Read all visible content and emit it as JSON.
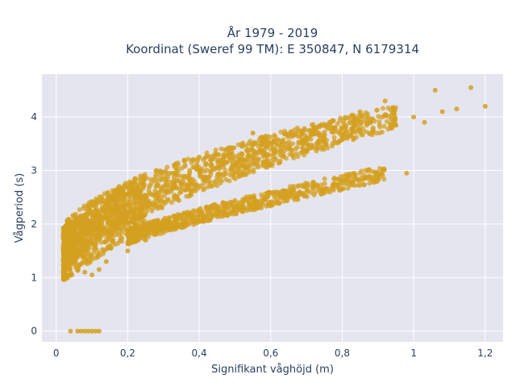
{
  "chart_data": {
    "type": "scatter",
    "title_line1": "År 1979 - 2019",
    "title_line2": "Koordinat (Sweref 99 TM): E 350847, N 6179314",
    "xlabel": "Signifikant våghöjd (m)",
    "ylabel": "Vågperiod (s)",
    "xlim": [
      -0.04,
      1.25
    ],
    "ylim": [
      -0.2,
      4.8
    ],
    "x_ticks": [
      0,
      0.2,
      0.4,
      0.6,
      0.8,
      1,
      1.2
    ],
    "x_tick_labels": [
      "0",
      "0,2",
      "0,4",
      "0,6",
      "0,8",
      "1",
      "1,2"
    ],
    "y_ticks": [
      0,
      1,
      2,
      3,
      4
    ],
    "y_tick_labels": [
      "0",
      "1",
      "2",
      "3",
      "4"
    ],
    "grid": true,
    "marker_color": "#d4a020",
    "plot_bg": "#e5e5f0",
    "series": [
      {
        "points": [
          [
            0.04,
            0
          ],
          [
            0.06,
            0
          ],
          [
            0.07,
            0
          ],
          [
            0.08,
            0
          ],
          [
            0.09,
            0
          ],
          [
            0.1,
            0
          ],
          [
            0.11,
            0
          ],
          [
            0.12,
            0
          ],
          [
            0.02,
            1.3
          ],
          [
            0.03,
            1.45
          ],
          [
            0.05,
            1.5
          ],
          [
            0.06,
            1.2
          ],
          [
            0.08,
            1.1
          ],
          [
            0.1,
            1.05
          ],
          [
            0.12,
            1.15
          ],
          [
            0.14,
            1.3
          ],
          [
            0.15,
            2.3
          ],
          [
            0.18,
            2.6
          ],
          [
            0.2,
            1.5
          ],
          [
            0.22,
            2.85
          ],
          [
            0.25,
            1.7
          ],
          [
            0.28,
            3.0
          ],
          [
            0.3,
            1.9
          ],
          [
            0.33,
            3.1
          ],
          [
            0.35,
            2.0
          ],
          [
            0.4,
            3.25
          ],
          [
            0.42,
            2.15
          ],
          [
            0.45,
            3.3
          ],
          [
            0.5,
            2.3
          ],
          [
            0.52,
            3.45
          ],
          [
            0.55,
            3.7
          ],
          [
            0.58,
            2.45
          ],
          [
            0.6,
            3.5
          ],
          [
            0.65,
            2.55
          ],
          [
            0.7,
            3.6
          ],
          [
            0.72,
            3.8
          ],
          [
            0.75,
            2.65
          ],
          [
            0.8,
            3.65
          ],
          [
            0.82,
            2.8
          ],
          [
            0.85,
            4.1
          ],
          [
            0.88,
            3.9
          ],
          [
            0.9,
            2.9
          ],
          [
            0.92,
            4.3
          ],
          [
            0.95,
            3.85
          ],
          [
            0.98,
            2.95
          ],
          [
            1.0,
            4.0
          ],
          [
            1.03,
            3.9
          ],
          [
            1.06,
            4.5
          ],
          [
            1.08,
            4.1
          ],
          [
            1.12,
            4.15
          ],
          [
            1.16,
            4.55
          ],
          [
            1.2,
            4.2
          ]
        ]
      }
    ]
  }
}
